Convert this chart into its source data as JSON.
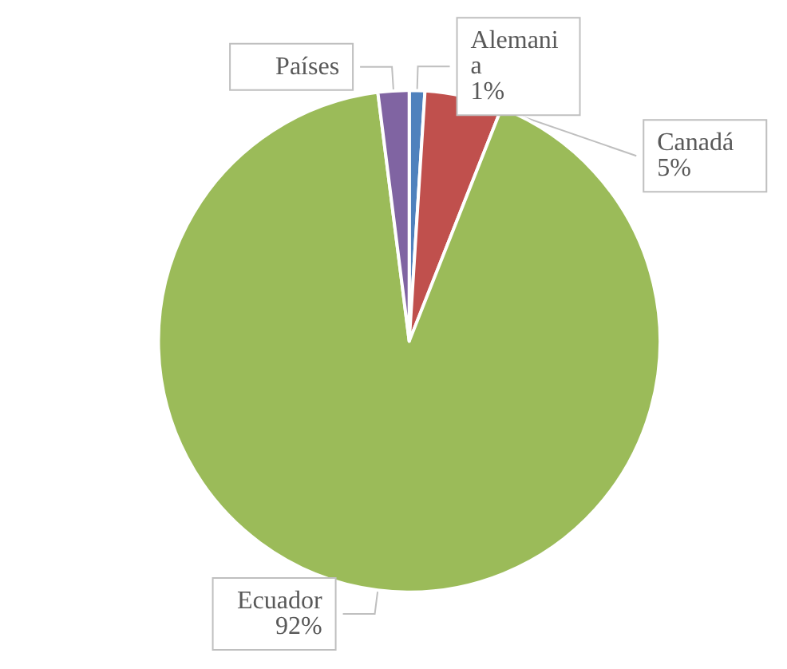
{
  "chart_data": {
    "type": "pie",
    "categories": [
      "Alemania",
      "Canadá",
      "Ecuador",
      "Países"
    ],
    "values": [
      1,
      5,
      92,
      2
    ],
    "value_labels": [
      "1%",
      "5%",
      "92%",
      null
    ],
    "colors": [
      "#4f81bd",
      "#c0504d",
      "#9bbb59",
      "#8064a2"
    ],
    "legend": false
  }
}
